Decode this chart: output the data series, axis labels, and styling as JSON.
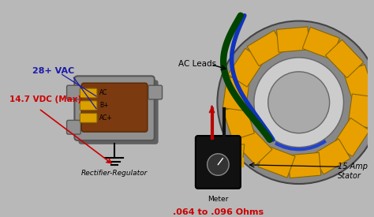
{
  "bg_color": "#b8b8b8",
  "labels": {
    "vac": "28+ VAC",
    "vdc": "14.7 VDC (Max)",
    "ac_leads": "AC Leads",
    "rectifier": "Rectifier-Regulator",
    "meter_label": "Meter",
    "ohms": ".064 to .096 Ohms",
    "stator": "15 Amp\nStator",
    "ac1": "AC",
    "ac2": "AC+",
    "b_plus": "B+",
    "ac3": "AC"
  },
  "colors": {
    "rectifier_body": "#7B3A10",
    "rectifier_case": "#909090",
    "rectifier_case_dark": "#707070",
    "vac_text": "#1a1aaa",
    "vdc_text": "#CC0000",
    "ohms_text": "#CC0000",
    "black": "#000000",
    "stator_yellow": "#E8A000",
    "stator_gray": "#888888",
    "stator_dark": "#555555",
    "stator_inner": "#aaaaaa",
    "stator_blue": "#2244CC",
    "wire_green": "#004400",
    "wire_blue": "#1133BB",
    "meter_body": "#111111",
    "connector_yellow": "#DAA000",
    "probe_red": "#BB0000",
    "line_color": "#000000"
  }
}
